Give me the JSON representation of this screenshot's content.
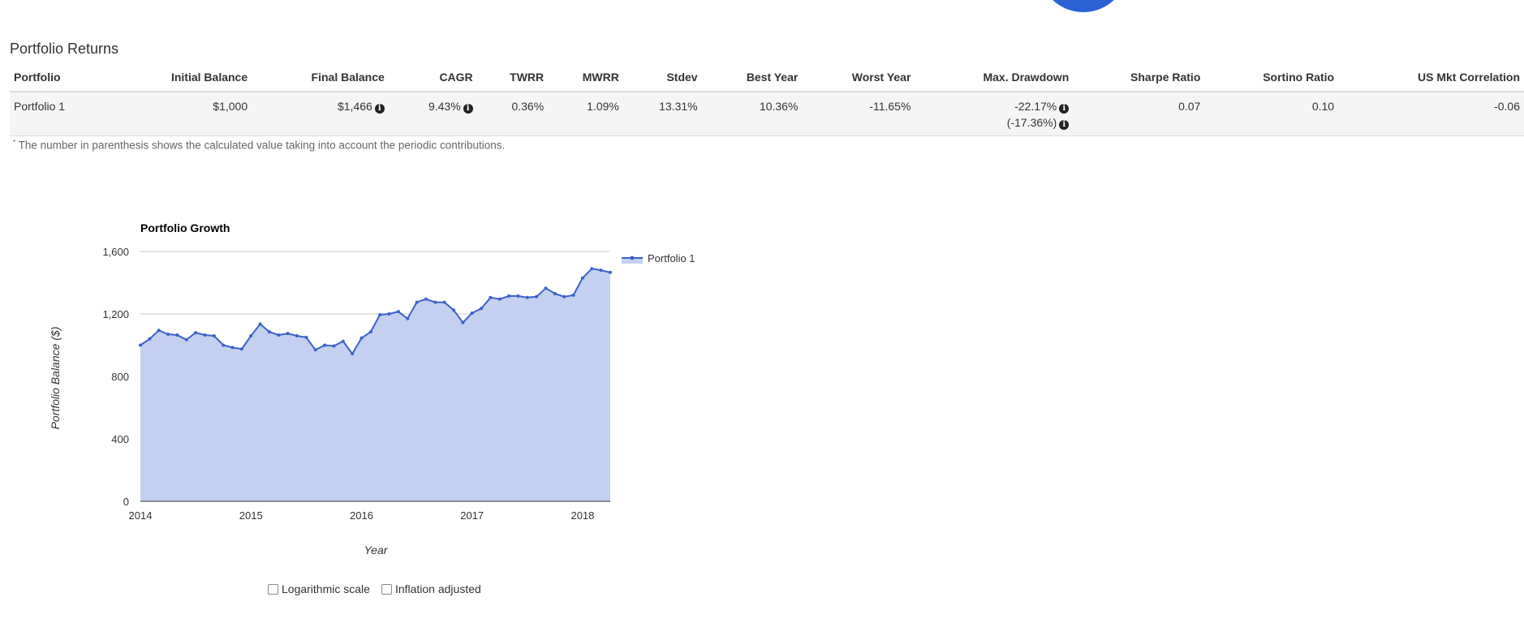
{
  "section": {
    "title": "Portfolio Returns"
  },
  "table": {
    "headers": [
      "Portfolio",
      "Initial Balance",
      "Final Balance",
      "CAGR",
      "TWRR",
      "MWRR",
      "Stdev",
      "Best Year",
      "Worst Year",
      "Max. Drawdown",
      "Sharpe Ratio",
      "Sortino Ratio",
      "US Mkt Correlation"
    ],
    "row": {
      "portfolio": "Portfolio 1",
      "initial_balance": "$1,000",
      "final_balance": "$1,466",
      "cagr": "9.43%",
      "twrr": "0.36%",
      "mwrr": "1.09%",
      "stdev": "13.31%",
      "best_year": "10.36%",
      "worst_year": "-11.65%",
      "max_drawdown": "-22.17%",
      "max_drawdown_contrib": "(-17.36%)",
      "sharpe_ratio": "0.07",
      "sortino_ratio": "0.10",
      "us_mkt_correlation": "-0.06"
    },
    "info_icon": "info-icon"
  },
  "footnote": {
    "marker": "*",
    "text": "The number in parenthesis shows the calculated value taking into account the periodic contributions."
  },
  "controls": {
    "log_label": "Logarithmic scale",
    "inflation_label": "Inflation adjusted"
  },
  "colors": {
    "line": "#3a62c8",
    "fill": "#c3d0f0",
    "accent_circle": "#2a62d4"
  },
  "chart_data": {
    "type": "area",
    "title": "Portfolio Growth",
    "xlabel": "Year",
    "ylabel": "Portfolio Balance ($)",
    "xlim": [
      2014,
      2018.25
    ],
    "ylim": [
      0,
      1600
    ],
    "yticks": [
      0,
      400,
      800,
      1200,
      1600
    ],
    "ytick_labels": [
      "0",
      "400",
      "800",
      "1,200",
      "1,600"
    ],
    "xticks": [
      2014,
      2015,
      2016,
      2017,
      2018
    ],
    "xtick_labels": [
      "2014",
      "2015",
      "2016",
      "2017",
      "2018"
    ],
    "grid": true,
    "legend": "top-right",
    "series": [
      {
        "name": "Portfolio 1",
        "x_start": 2014,
        "step": "monthly",
        "values": [
          1000,
          1040,
          1095,
          1070,
          1065,
          1035,
          1080,
          1065,
          1060,
          1000,
          985,
          975,
          1060,
          1135,
          1085,
          1065,
          1075,
          1060,
          1050,
          970,
          1000,
          995,
          1025,
          945,
          1045,
          1085,
          1195,
          1200,
          1215,
          1170,
          1275,
          1295,
          1275,
          1275,
          1225,
          1145,
          1205,
          1235,
          1305,
          1295,
          1315,
          1315,
          1305,
          1310,
          1365,
          1330,
          1310,
          1320,
          1430,
          1490,
          1480,
          1466
        ]
      }
    ]
  }
}
